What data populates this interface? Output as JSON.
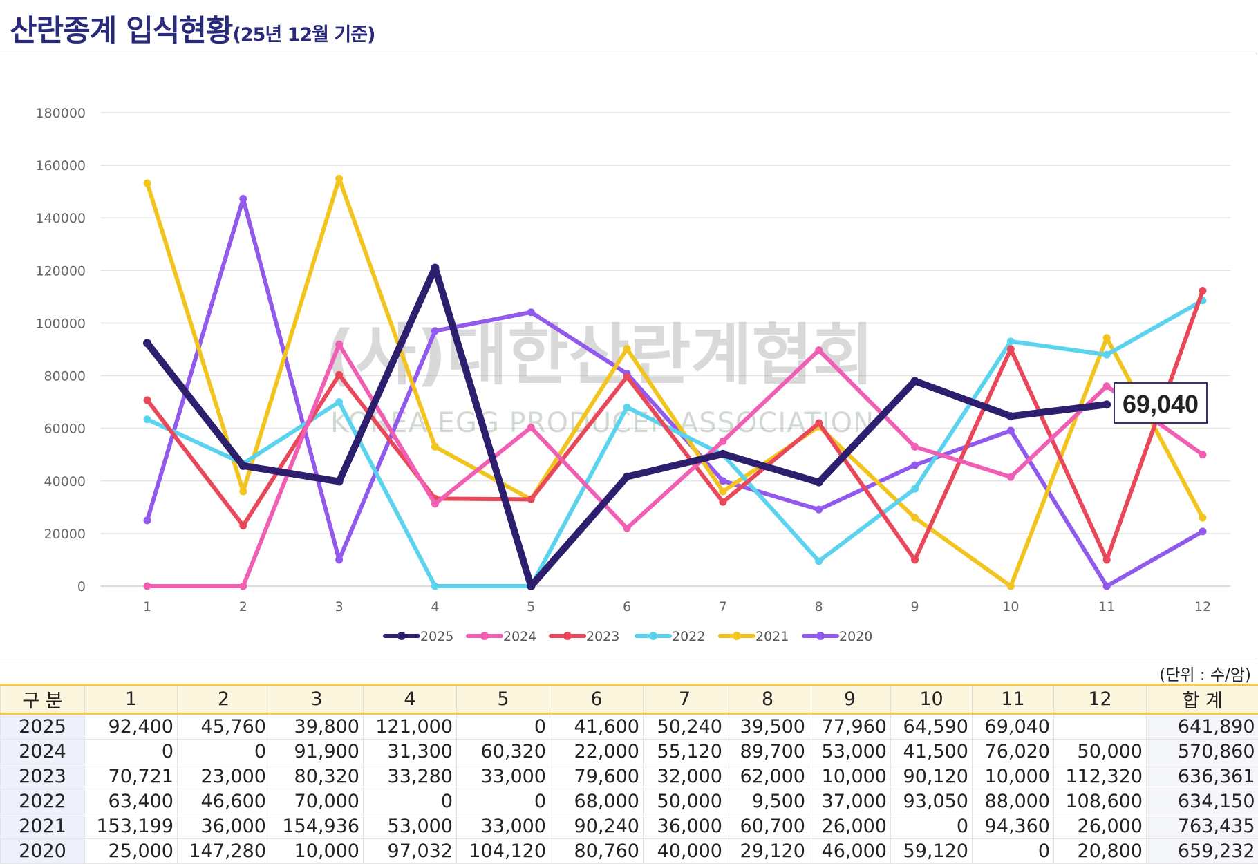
{
  "title": "산란종계 입식현황",
  "subtitle": "(25년 12월 기준)",
  "watermark": {
    "korean": "(사)대한산란계협회",
    "english": "KOREA EGG PRODUCER ASSOCIATION"
  },
  "unit_note": "(단위 : 수/암)",
  "callout": {
    "series": "2025",
    "month": 11,
    "label": "69,040"
  },
  "colors": {
    "2025": "#2e1f6e",
    "2024": "#f05fb4",
    "2023": "#e8485a",
    "2022": "#5bd3ee",
    "2021": "#f2c420",
    "2020": "#9159ec"
  },
  "chart_data": {
    "type": "line",
    "categories": [
      "1",
      "2",
      "3",
      "4",
      "5",
      "6",
      "7",
      "8",
      "9",
      "10",
      "11",
      "12"
    ],
    "ylim": [
      0,
      180000
    ],
    "yticks": [
      "0",
      "20000",
      "40000",
      "60000",
      "80000",
      "100000",
      "120000",
      "140000",
      "160000",
      "180000"
    ],
    "grid": true,
    "legend_position": "bottom",
    "series": [
      {
        "name": "2025",
        "values": [
          92400,
          45760,
          39800,
          121000,
          0,
          41600,
          50240,
          39500,
          77960,
          64590,
          69040,
          null
        ]
      },
      {
        "name": "2024",
        "values": [
          0,
          0,
          91900,
          31300,
          60320,
          22000,
          55120,
          89700,
          53000,
          41500,
          76020,
          50000
        ]
      },
      {
        "name": "2023",
        "values": [
          70721,
          23000,
          80320,
          33280,
          33000,
          79600,
          32000,
          62000,
          10000,
          90120,
          10000,
          112320
        ]
      },
      {
        "name": "2022",
        "values": [
          63400,
          46600,
          70000,
          0,
          0,
          68000,
          50000,
          9500,
          37000,
          93050,
          88000,
          108600
        ]
      },
      {
        "name": "2021",
        "values": [
          153199,
          36000,
          154936,
          53000,
          33000,
          90240,
          36000,
          60700,
          26000,
          0,
          94360,
          26000
        ]
      },
      {
        "name": "2020",
        "values": [
          25000,
          147280,
          10000,
          97032,
          104120,
          80760,
          40000,
          29120,
          46000,
          59120,
          0,
          20800
        ]
      }
    ]
  },
  "table": {
    "headers": [
      "구 분",
      "1",
      "2",
      "3",
      "4",
      "5",
      "6",
      "7",
      "8",
      "9",
      "10",
      "11",
      "12",
      "합 계"
    ],
    "rows": [
      [
        "2025",
        "92,400",
        "45,760",
        "39,800",
        "121,000",
        "0",
        "41,600",
        "50,240",
        "39,500",
        "77,960",
        "64,590",
        "69,040",
        "",
        "641,890"
      ],
      [
        "2024",
        "0",
        "0",
        "91,900",
        "31,300",
        "60,320",
        "22,000",
        "55,120",
        "89,700",
        "53,000",
        "41,500",
        "76,020",
        "50,000",
        "570,860"
      ],
      [
        "2023",
        "70,721",
        "23,000",
        "80,320",
        "33,280",
        "33,000",
        "79,600",
        "32,000",
        "62,000",
        "10,000",
        "90,120",
        "10,000",
        "112,320",
        "636,361"
      ],
      [
        "2022",
        "63,400",
        "46,600",
        "70,000",
        "0",
        "0",
        "68,000",
        "50,000",
        "9,500",
        "37,000",
        "93,050",
        "88,000",
        "108,600",
        "634,150"
      ],
      [
        "2021",
        "153,199",
        "36,000",
        "154,936",
        "53,000",
        "33,000",
        "90,240",
        "36,000",
        "60,700",
        "26,000",
        "0",
        "94,360",
        "26,000",
        "763,435"
      ],
      [
        "2020",
        "25,000",
        "147,280",
        "10,000",
        "97,032",
        "104,120",
        "80,760",
        "40,000",
        "29,120",
        "46,000",
        "59,120",
        "0",
        "20,800",
        "659,232"
      ]
    ]
  }
}
